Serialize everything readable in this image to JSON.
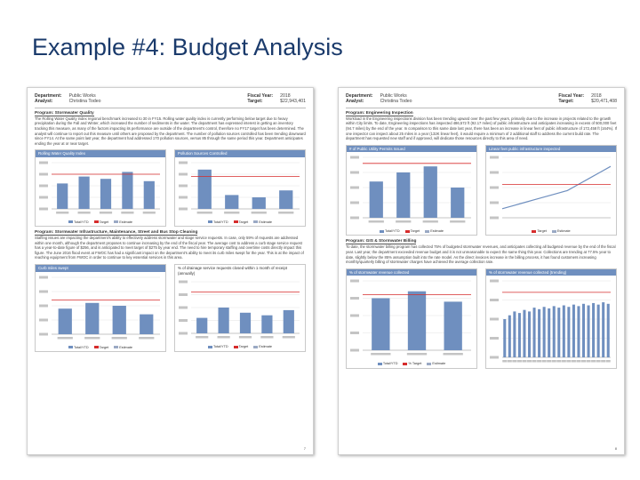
{
  "slide": {
    "title": "Example #4: Budget Analysis"
  },
  "page1": {
    "header": {
      "dept_label": "Department:",
      "dept": "Public Works",
      "analyst_label": "Analyst:",
      "analyst": "Christina Todeo",
      "fy_label": "Fiscal Year:",
      "fy": "2018",
      "target_label": "Target:",
      "target": "$22,943,401"
    },
    "section1": {
      "title": "Program: Stormwater Quality",
      "text": "The Rolling Water Quality index regional benchmark increased to 30 in FY15. Rolling water quality index is currently performing below target due to heavy precipitation during the Fall and Winter, which increased the number of sediments in the water. The department has expressed interest in getting an inventory tracking this measure, as many of the factors impacting its performance are outside of the department's control, therefore no FY17 target has been determined. The analyst will continue to report out this measure until others are proposed by the department. The number of pollution sources controlled has been trending downward since FY14. At the same point last year, the department had addressed 170 pollution sources, versus 85 through the same period this year. Department anticipates ending the year at or near target."
    },
    "chart1": {
      "title": "Rolling Water Quality Index",
      "legend": [
        "Total/YTD",
        "Target",
        "Estimate"
      ]
    },
    "chart2": {
      "title": "Pollution Sources Controlled",
      "legend": [
        "Total/YTD",
        "Target",
        "Estimate"
      ]
    },
    "section2": {
      "title": "Program: Stormwater Infrastructure, Maintenance, Street and Bus Stop Cleaning",
      "text": "Staffing issues are impacting the department's ability to effectively address stormwater and stage service requests. In case, only 59% of requests are addressed within one month, although the department proposes to continue increasing by the end of the fiscal year. The average cost to address a curb stage service request has a year-to-date figure of $256, and is anticipated to meet target of $275 by year end. The need to hire temporary staffing and overtime costs directly impact this figure. The June 2016 flood event at FWOC has had a significant impact on the department's ability to meet its curb miles swept for the year. This is at the impact of reaching equipment from FWOC in order to continue to key essential services in this area."
    },
    "chart3": {
      "title": "Curb miles swept",
      "legend": [
        "Total/YTD",
        "Target",
        "Estimate"
      ]
    },
    "chart4": {
      "title": "% of drainage service requests closed within 1 month of receipt (annually)",
      "legend": [
        "Total/YTD",
        "Target",
        "Estimate"
      ]
    },
    "pgno": "7"
  },
  "page2": {
    "header": {
      "dept_label": "Department:",
      "dept": "Public Works",
      "analyst_label": "Analyst:",
      "analyst": "Christina Todeo",
      "fy_label": "Fiscal Year:",
      "fy": "2018",
      "target_label": "Target:",
      "target": "$20,471,408"
    },
    "section1": {
      "title": "Program: Engineering Inspection",
      "text": "Workload in the Engineering inspections division has been trending upward over the past few years, primarily due to the increase in projects related to the growth within City limits. To date, Engineering inspections has inspected 486,572 ft (92.17 miles) of public infrastructure and anticipates increasing in excess of 500,000 feet (94.7 miles) by the end of the year. In comparison to this same date last year, there has been an increase in linear feet of public infrastructure of 172,458 ft (164%). If one inspector can inspect about 25 miles in a year (132K linear feet), it would require a minimum of 2 additional staff to address the current build rate. The department has requested new staff and if approved, will dedicate those resources directly to this area of need."
    },
    "chart1": {
      "title": "# of Public Utility Permits Issued",
      "legend": [
        "Total/YTD",
        "Target",
        "Estimate"
      ]
    },
    "chart2": {
      "title": "Linear feet public infrastructure inspected",
      "legend": [
        "Target",
        "Estimate"
      ]
    },
    "section2": {
      "title": "Program: GIS & Stormwater Billing",
      "text": "To date, the stormwater billing program has collected 75% of budgeted stormwater revenues, and anticipates collecting all budgeted revenue by the end of the fiscal year. Last year, the department exceeded revenue budget and it is not unreasonable to expect the same thing this year. Collections are trending at 77.5% year to date, slightly below the 85% assumption built into the rate model. As the direct invoices increase in the billing process, it has found customers increasing monthly/quarterly billing of stormwater charges have achieved the average collection rate."
    },
    "chart3": {
      "title": "% of stormwater revenue collected",
      "legend": [
        "Total/YTD",
        "% Target",
        "Estimate"
      ]
    },
    "chart4": {
      "title": "% of stormwater revenue collected (trending)",
      "legend": []
    },
    "pgno": "8"
  },
  "colors": {
    "bar": "#6f8fbf",
    "target": "#d62c2c",
    "estimate": "#9aa9c4",
    "header": "#6f8fbf",
    "title": "#1a3a6b"
  }
}
